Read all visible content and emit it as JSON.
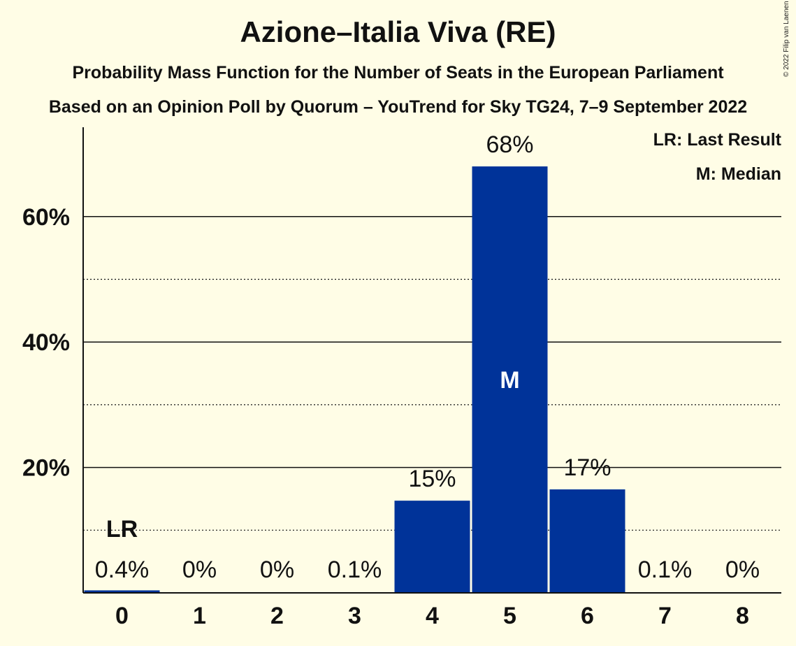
{
  "header": {
    "title": "Azione–Italia Viva (RE)",
    "subtitle1": "Probability Mass Function for the Number of Seats in the European Parliament",
    "subtitle2": "Based on an Opinion Poll by Quorum – YouTrend for Sky TG24, 7–9 September 2022",
    "copyright": "© 2022 Filip van Laenen"
  },
  "legend": {
    "lr": "LR: Last Result",
    "m": "M: Median",
    "placement": "top-right"
  },
  "colors": {
    "bar": "#003399",
    "background": "#fffde6",
    "text": "#111111"
  },
  "chart_data": {
    "type": "bar",
    "title": "Azione–Italia Viva (RE)",
    "xlabel": "",
    "ylabel": "",
    "categories": [
      "0",
      "1",
      "2",
      "3",
      "4",
      "5",
      "6",
      "7",
      "8"
    ],
    "values": [
      0.4,
      0,
      0,
      0.1,
      14.7,
      68,
      16.5,
      0.1,
      0
    ],
    "value_labels": [
      "0.4%",
      "0%",
      "0%",
      "0.1%",
      "15%",
      "68%",
      "17%",
      "0.1%",
      "0%"
    ],
    "ylim": [
      0,
      74
    ],
    "yticks": [
      20,
      40,
      60
    ],
    "ytick_labels": [
      "20%",
      "40%",
      "60%"
    ],
    "minor_gridlines": [
      10,
      30,
      50
    ],
    "grid": true,
    "last_result_index": 0,
    "last_result_label": "LR",
    "median_index": 5,
    "median_label": "M"
  }
}
